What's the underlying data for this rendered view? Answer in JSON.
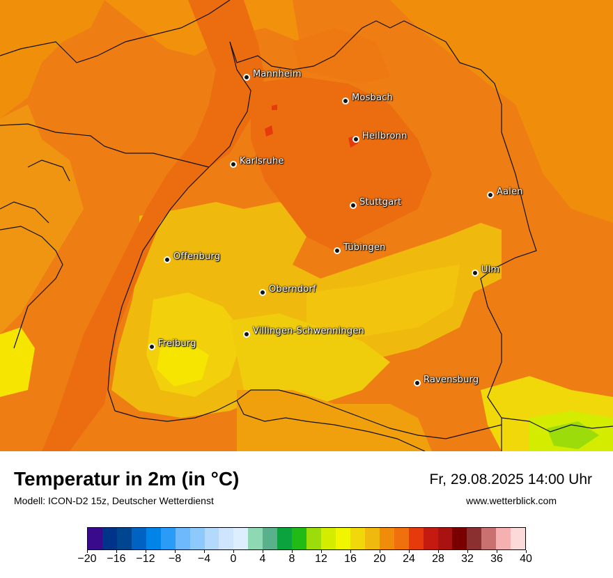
{
  "map": {
    "cities": [
      {
        "name": "Mannheim"
      },
      {
        "name": "Mosbach"
      },
      {
        "name": "Heilbronn"
      },
      {
        "name": "Karlsruhe"
      },
      {
        "name": "Aalen"
      },
      {
        "name": "Stuttgart"
      },
      {
        "name": "Tübingen"
      },
      {
        "name": "Offenburg"
      },
      {
        "name": "Ulm"
      },
      {
        "name": "Oberndorf"
      },
      {
        "name": "Villingen-Schwenningen"
      },
      {
        "name": "Freiburg"
      },
      {
        "name": "Ravensburg"
      }
    ]
  },
  "footer": {
    "title": "Temperatur in 2m (in °C)",
    "model": "Modell: ICON-D2 15z, Deutscher Wetterdienst",
    "datetime": "Fr, 29.08.2025 14:00 Uhr",
    "site": "www.wetterblick.com"
  },
  "legend": {
    "colors": [
      "#3a0a8c",
      "#00348a",
      "#00458f",
      "#0063c4",
      "#0084e8",
      "#2a9cf8",
      "#6db9fb",
      "#8ec9fb",
      "#b3d9fc",
      "#cfe5fd",
      "#ddeeff",
      "#8fd8b4",
      "#59b08c",
      "#0aa33e",
      "#22bb15",
      "#9cdc0a",
      "#d4ec00",
      "#f2f500",
      "#f0d80a",
      "#f0b90d",
      "#f08c0a",
      "#f0700e",
      "#e63a0c",
      "#c41a10",
      "#a81312",
      "#7a0000",
      "#8a3030",
      "#c97070",
      "#f5b0b0",
      "#fddada"
    ],
    "tick_labels": [
      "−20",
      "−16",
      "−12",
      "−8",
      "−4",
      "0",
      "4",
      "8",
      "12",
      "16",
      "20",
      "24",
      "28",
      "32",
      "36",
      "40"
    ],
    "min": -20,
    "max": 40
  }
}
